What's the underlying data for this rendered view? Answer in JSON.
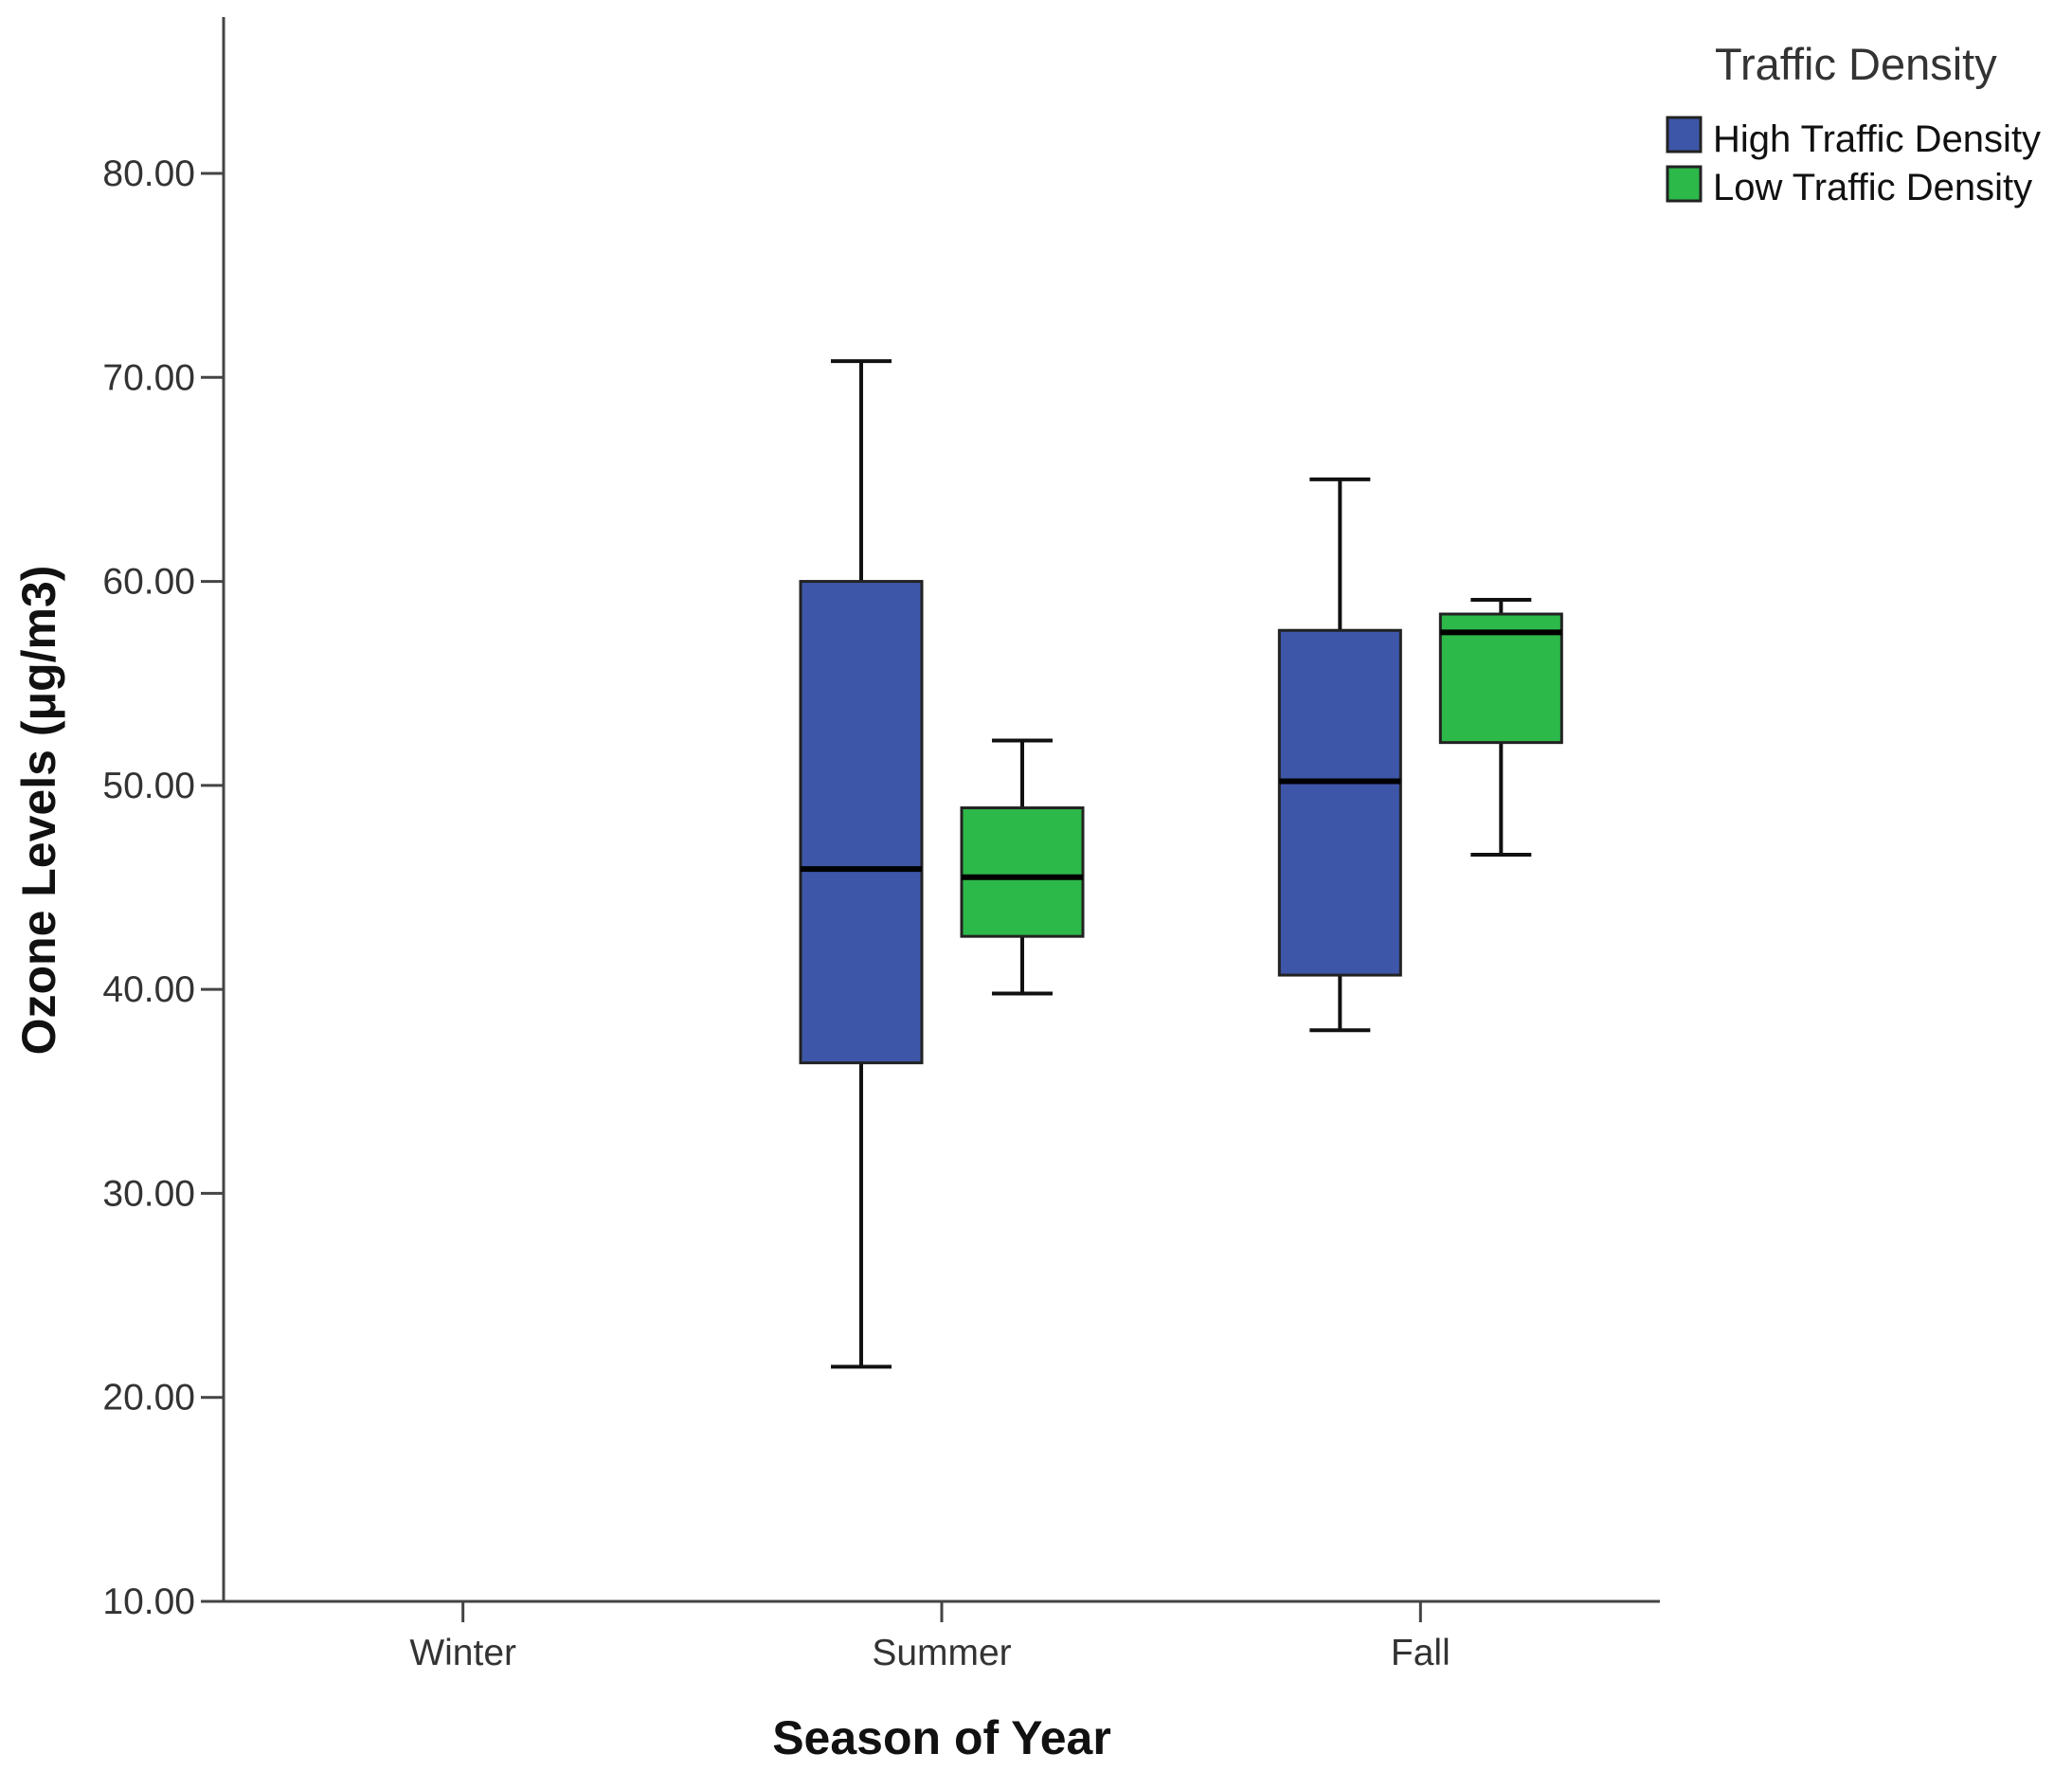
{
  "chart_data": {
    "type": "boxplot",
    "title": "",
    "xlabel": "Season of Year",
    "ylabel": "Ozone Levels (μg/m3)",
    "ylim": [
      10,
      87.5
    ],
    "yticks": [
      10,
      20,
      30,
      40,
      50,
      60,
      70,
      80
    ],
    "ytick_labels": [
      "10.00",
      "20.00",
      "30.00",
      "40.00",
      "50.00",
      "60.00",
      "70.00",
      "80.00"
    ],
    "categories": [
      "Winter",
      "Summer",
      "Fall"
    ],
    "legend": {
      "title": "Traffic Density",
      "position": "top-right",
      "entries": [
        "High Traffic Density",
        "Low Traffic Density"
      ]
    },
    "series": [
      {
        "name": "High Traffic Density",
        "color": "#3e56a8",
        "boxes": [
          null,
          {
            "min": 21.5,
            "q1": 36.4,
            "median": 45.9,
            "q3": 60.0,
            "max": 70.8
          },
          {
            "min": 38.0,
            "q1": 40.7,
            "median": 50.2,
            "q3": 57.6,
            "max": 65.0
          }
        ]
      },
      {
        "name": "Low Traffic Density",
        "color": "#2db84a",
        "boxes": [
          null,
          {
            "min": 39.8,
            "q1": 42.6,
            "median": 45.5,
            "q3": 48.9,
            "max": 52.2
          },
          {
            "min": 46.6,
            "q1": 52.1,
            "median": 57.5,
            "q3": 58.4,
            "max": 59.1
          }
        ]
      }
    ]
  }
}
